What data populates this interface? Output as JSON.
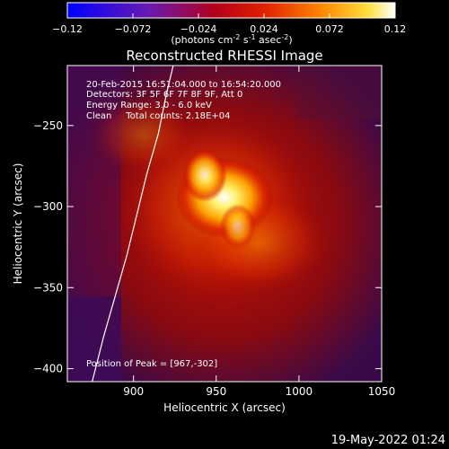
{
  "colorbar": {
    "ticks": [
      "-0.12",
      "-0.072",
      "-0.024",
      "0.024",
      "0.072",
      "0.12"
    ],
    "unit_label": "(photons cm",
    "unit_sup1": "-2",
    "unit_mid": " s",
    "unit_sup2": "-1",
    "unit_end": " asec",
    "unit_sup3": "-2",
    "unit_close": ")",
    "range": [
      -0.12,
      0.12
    ]
  },
  "title": "Reconstructed RHESSI Image",
  "info": {
    "line1": "20-Feb-2015 16:51:04.000 to 16:54:20.000",
    "line2": "Detectors: 3F 5F 6F 7F 8F 9F, Att 0",
    "line3": "Energy Range: 3.0 - 6.0 keV",
    "line4": "Clean     Total counts: 2.18E+04",
    "peak": "Position of Peak = [967,-302]"
  },
  "footer": "19-May-2022 01:24",
  "chart_data": {
    "type": "heatmap",
    "title": "Reconstructed RHESSI Image",
    "xlabel": "Heliocentric X (arcsec)",
    "ylabel": "Heliocentric Y (arcsec)",
    "xlim": [
      860,
      1050
    ],
    "ylim": [
      -408,
      -213
    ],
    "xticks": [
      900,
      950,
      1000,
      1050
    ],
    "yticks": [
      -250,
      -300,
      -350,
      -400
    ],
    "colormap": "hot (blue-purple-red-yellow-white)",
    "peak": [
      967,
      -302
    ],
    "limb_curve": [
      [
        924,
        -213
      ],
      [
        920,
        -230
      ],
      [
        915,
        -255
      ],
      [
        908,
        -280
      ],
      [
        902,
        -305
      ],
      [
        896,
        -330
      ],
      [
        889,
        -355
      ],
      [
        882,
        -380
      ],
      [
        875,
        -408
      ]
    ]
  }
}
